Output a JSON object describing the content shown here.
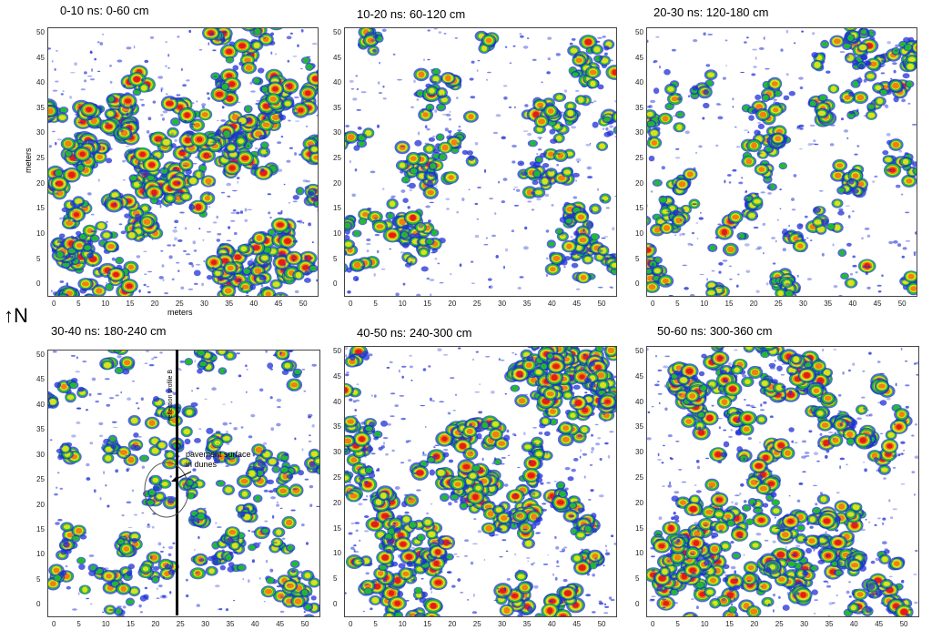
{
  "panels": [
    {
      "title": "0-10 ns: 0-60 cm",
      "density": 1.0
    },
    {
      "title": "10-20 ns: 60-120 cm",
      "density": 0.45
    },
    {
      "title": "20-30 ns: 120-180 cm",
      "density": 0.45
    },
    {
      "title": "30-40 ns: 180-240 cm",
      "density": 0.4
    },
    {
      "title": "40-50 ns: 240-300 cm",
      "density": 0.85
    },
    {
      "title": "50-60 ns: 300-360 cm",
      "density": 0.9
    }
  ],
  "axes": {
    "y_ticks": [
      "50",
      "45",
      "40",
      "35",
      "30",
      "25",
      "20",
      "15",
      "10",
      "5",
      "0"
    ],
    "x_ticks": [
      "0",
      "5",
      "10",
      "15",
      "20",
      "25",
      "30",
      "35",
      "40",
      "45",
      "50"
    ],
    "y_label": "meters",
    "x_label": "meters"
  },
  "north_symbol": "↑N",
  "annotations": {
    "profile_label": "reflection profile B",
    "pavement_line1": "pavement surface",
    "pavement_line2": "in dunes"
  },
  "colors": {
    "blue": "#1f2fd6",
    "green": "#1fbf2a",
    "yellow": "#e8e020",
    "orange": "#f07a10",
    "red": "#e01818"
  }
}
